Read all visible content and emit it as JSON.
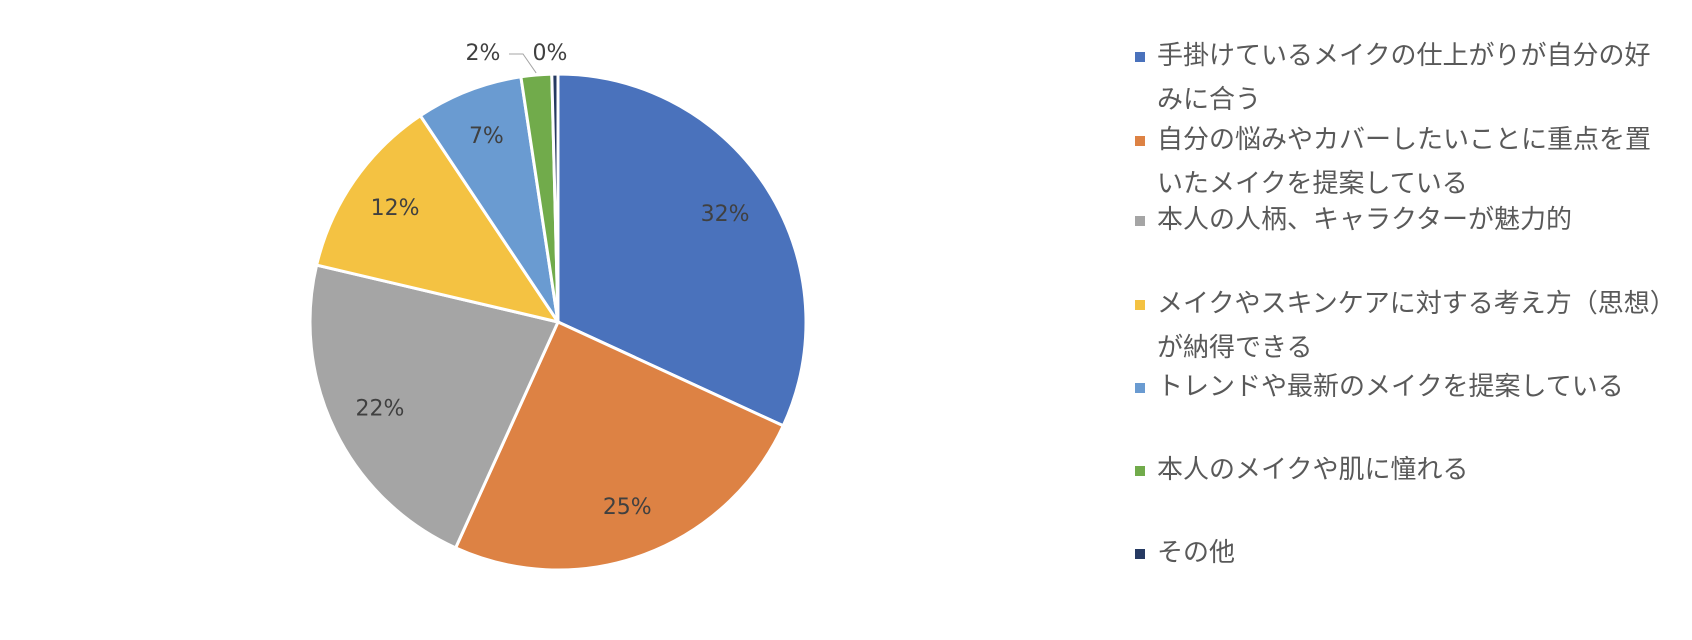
{
  "chart_data": {
    "type": "pie",
    "categories": [
      "手掛けているメイクの仕上がりが自分の好みに合う",
      "自分の悩みやカバーしたいことに重点を置いたメイクを提案している",
      "本人の人柄、キャラクターが魅力的",
      "メイクやスキンケアに対する考え方（思想）が納得できる",
      "トレンドや最新のメイクを提案している",
      "本人のメイクや肌に憧れる",
      "その他"
    ],
    "values": [
      32,
      25,
      22,
      12,
      7,
      2,
      0.4
    ],
    "value_labels": [
      "32%",
      "25%",
      "22%",
      "12%",
      "7%",
      "2%",
      "0%"
    ],
    "colors": [
      "#4a72bc",
      "#dd8244",
      "#a5a5a5",
      "#f4c242",
      "#6a9bd1",
      "#71ab4b",
      "#263a62"
    ],
    "legend": "right"
  }
}
